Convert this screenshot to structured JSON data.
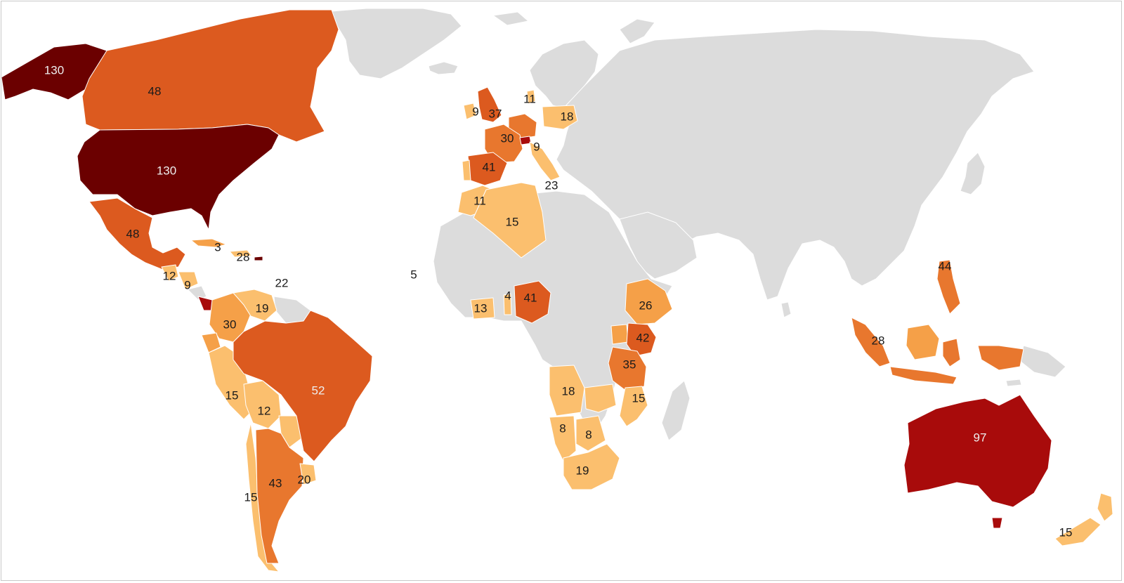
{
  "map": {
    "color_scale": {
      "no_data": "#dcdcdc",
      "level_1": "#fbbf6e",
      "level_2": "#f5a048",
      "level_3": "#e8772e",
      "level_4": "#dc5a1f",
      "level_5": "#a80b0b",
      "level_6": "#6b0000"
    },
    "labels": [
      {
        "key": "alaska",
        "value": "130"
      },
      {
        "key": "canada",
        "value": "48"
      },
      {
        "key": "usa",
        "value": "130"
      },
      {
        "key": "mexico",
        "value": "48"
      },
      {
        "key": "cuba",
        "value": "3"
      },
      {
        "key": "caribbean",
        "value": "28"
      },
      {
        "key": "guatemala",
        "value": "12"
      },
      {
        "key": "honduras",
        "value": "9"
      },
      {
        "key": "lesser-antilles",
        "value": "22"
      },
      {
        "key": "cape-verde",
        "value": "5"
      },
      {
        "key": "colombia",
        "value": "30"
      },
      {
        "key": "venezuela",
        "value": "19"
      },
      {
        "key": "peru",
        "value": "15"
      },
      {
        "key": "bolivia",
        "value": "12"
      },
      {
        "key": "brazil",
        "value": "52"
      },
      {
        "key": "argentina",
        "value": "43"
      },
      {
        "key": "chile",
        "value": "15"
      },
      {
        "key": "uruguay",
        "value": "20"
      },
      {
        "key": "ireland",
        "value": "9"
      },
      {
        "key": "uk",
        "value": "37"
      },
      {
        "key": "denmark",
        "value": "11"
      },
      {
        "key": "poland",
        "value": "18"
      },
      {
        "key": "france",
        "value": "30"
      },
      {
        "key": "switzerland",
        "value": "9"
      },
      {
        "key": "spain",
        "value": "41"
      },
      {
        "key": "italy-malta",
        "value": "23"
      },
      {
        "key": "morocco",
        "value": "11"
      },
      {
        "key": "algeria",
        "value": "15"
      },
      {
        "key": "ivory-coast",
        "value": "13"
      },
      {
        "key": "togo",
        "value": "4"
      },
      {
        "key": "nigeria",
        "value": "41"
      },
      {
        "key": "ethiopia",
        "value": "26"
      },
      {
        "key": "kenya",
        "value": "42"
      },
      {
        "key": "tanzania",
        "value": "35"
      },
      {
        "key": "mozambique",
        "value": "15"
      },
      {
        "key": "angola",
        "value": "18"
      },
      {
        "key": "namibia",
        "value": "8"
      },
      {
        "key": "botswana",
        "value": "8"
      },
      {
        "key": "south-africa",
        "value": "19"
      },
      {
        "key": "philippines",
        "value": "44"
      },
      {
        "key": "indonesia",
        "value": "28"
      },
      {
        "key": "australia",
        "value": "97"
      },
      {
        "key": "new-zealand",
        "value": "15"
      }
    ]
  }
}
